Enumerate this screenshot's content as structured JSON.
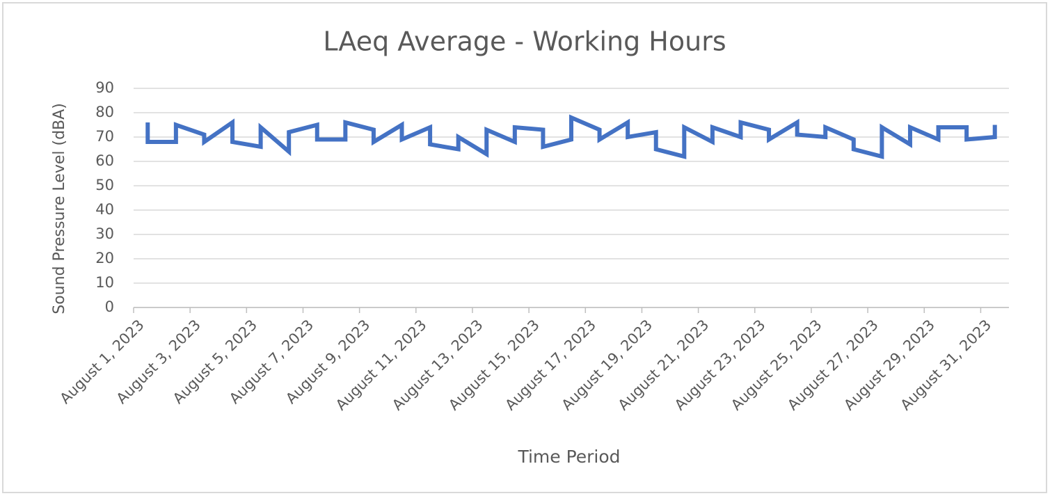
{
  "chart_data": {
    "type": "line",
    "title": "LAeq Average - Working Hours",
    "x_label": "Time Period",
    "y_label": "Sound Pressure Level  (dBA)",
    "x": [
      "2023-08-01",
      "2023-08-01",
      "2023-08-02",
      "2023-08-02",
      "2023-08-03",
      "2023-08-03",
      "2023-08-04",
      "2023-08-04",
      "2023-08-05",
      "2023-08-05",
      "2023-08-06",
      "2023-08-06",
      "2023-08-07",
      "2023-08-07",
      "2023-08-08",
      "2023-08-08",
      "2023-08-09",
      "2023-08-09",
      "2023-08-10",
      "2023-08-10",
      "2023-08-11",
      "2023-08-11",
      "2023-08-12",
      "2023-08-12",
      "2023-08-13",
      "2023-08-13",
      "2023-08-14",
      "2023-08-14",
      "2023-08-15",
      "2023-08-15",
      "2023-08-16",
      "2023-08-16",
      "2023-08-17",
      "2023-08-17",
      "2023-08-18",
      "2023-08-18",
      "2023-08-19",
      "2023-08-19",
      "2023-08-20",
      "2023-08-20",
      "2023-08-21",
      "2023-08-21",
      "2023-08-22",
      "2023-08-22",
      "2023-08-23",
      "2023-08-23",
      "2023-08-24",
      "2023-08-24",
      "2023-08-25",
      "2023-08-25",
      "2023-08-26",
      "2023-08-26",
      "2023-08-27",
      "2023-08-27",
      "2023-08-28",
      "2023-08-28",
      "2023-08-29",
      "2023-08-29",
      "2023-08-30",
      "2023-08-30",
      "2023-08-31",
      "2023-08-31"
    ],
    "series": [
      {
        "name": "LAeq",
        "color": "#4472c4",
        "values": [
          76,
          68,
          68,
          75,
          71,
          68,
          76,
          68,
          66,
          74,
          64,
          72,
          75,
          69,
          69,
          76,
          73,
          68,
          75,
          69,
          74,
          67,
          65,
          70,
          63,
          73,
          68,
          74,
          73,
          66,
          69,
          78,
          73,
          69,
          76,
          70,
          72,
          65,
          62,
          74,
          68,
          74,
          70,
          76,
          73,
          69,
          76,
          71,
          70,
          74,
          69,
          65,
          62,
          74,
          67,
          74,
          69,
          74,
          74,
          69,
          70,
          75
        ]
      }
    ],
    "xlim": [
      "2023-08-01",
      "2023-09-01"
    ],
    "xticks": [
      {
        "value": "2023-08-01",
        "label": "August 1, 2023"
      },
      {
        "value": "2023-08-03",
        "label": "August 3, 2023"
      },
      {
        "value": "2023-08-05",
        "label": "August 5, 2023"
      },
      {
        "value": "2023-08-07",
        "label": "August 7, 2023"
      },
      {
        "value": "2023-08-09",
        "label": "August 9, 2023"
      },
      {
        "value": "2023-08-11",
        "label": "August 11, 2023"
      },
      {
        "value": "2023-08-13",
        "label": "August 13, 2023"
      },
      {
        "value": "2023-08-15",
        "label": "August 15, 2023"
      },
      {
        "value": "2023-08-17",
        "label": "August 17, 2023"
      },
      {
        "value": "2023-08-19",
        "label": "August 19, 2023"
      },
      {
        "value": "2023-08-21",
        "label": "August 21, 2023"
      },
      {
        "value": "2023-08-23",
        "label": "August 23, 2023"
      },
      {
        "value": "2023-08-25",
        "label": "August 25, 2023"
      },
      {
        "value": "2023-08-27",
        "label": "August 27, 2023"
      },
      {
        "value": "2023-08-29",
        "label": "August 29, 2023"
      },
      {
        "value": "2023-08-31",
        "label": "August 31, 2023"
      }
    ],
    "ylim": [
      0,
      90
    ],
    "yticks": [
      0,
      10,
      20,
      30,
      40,
      50,
      60,
      70,
      80,
      90
    ],
    "grid": true
  }
}
